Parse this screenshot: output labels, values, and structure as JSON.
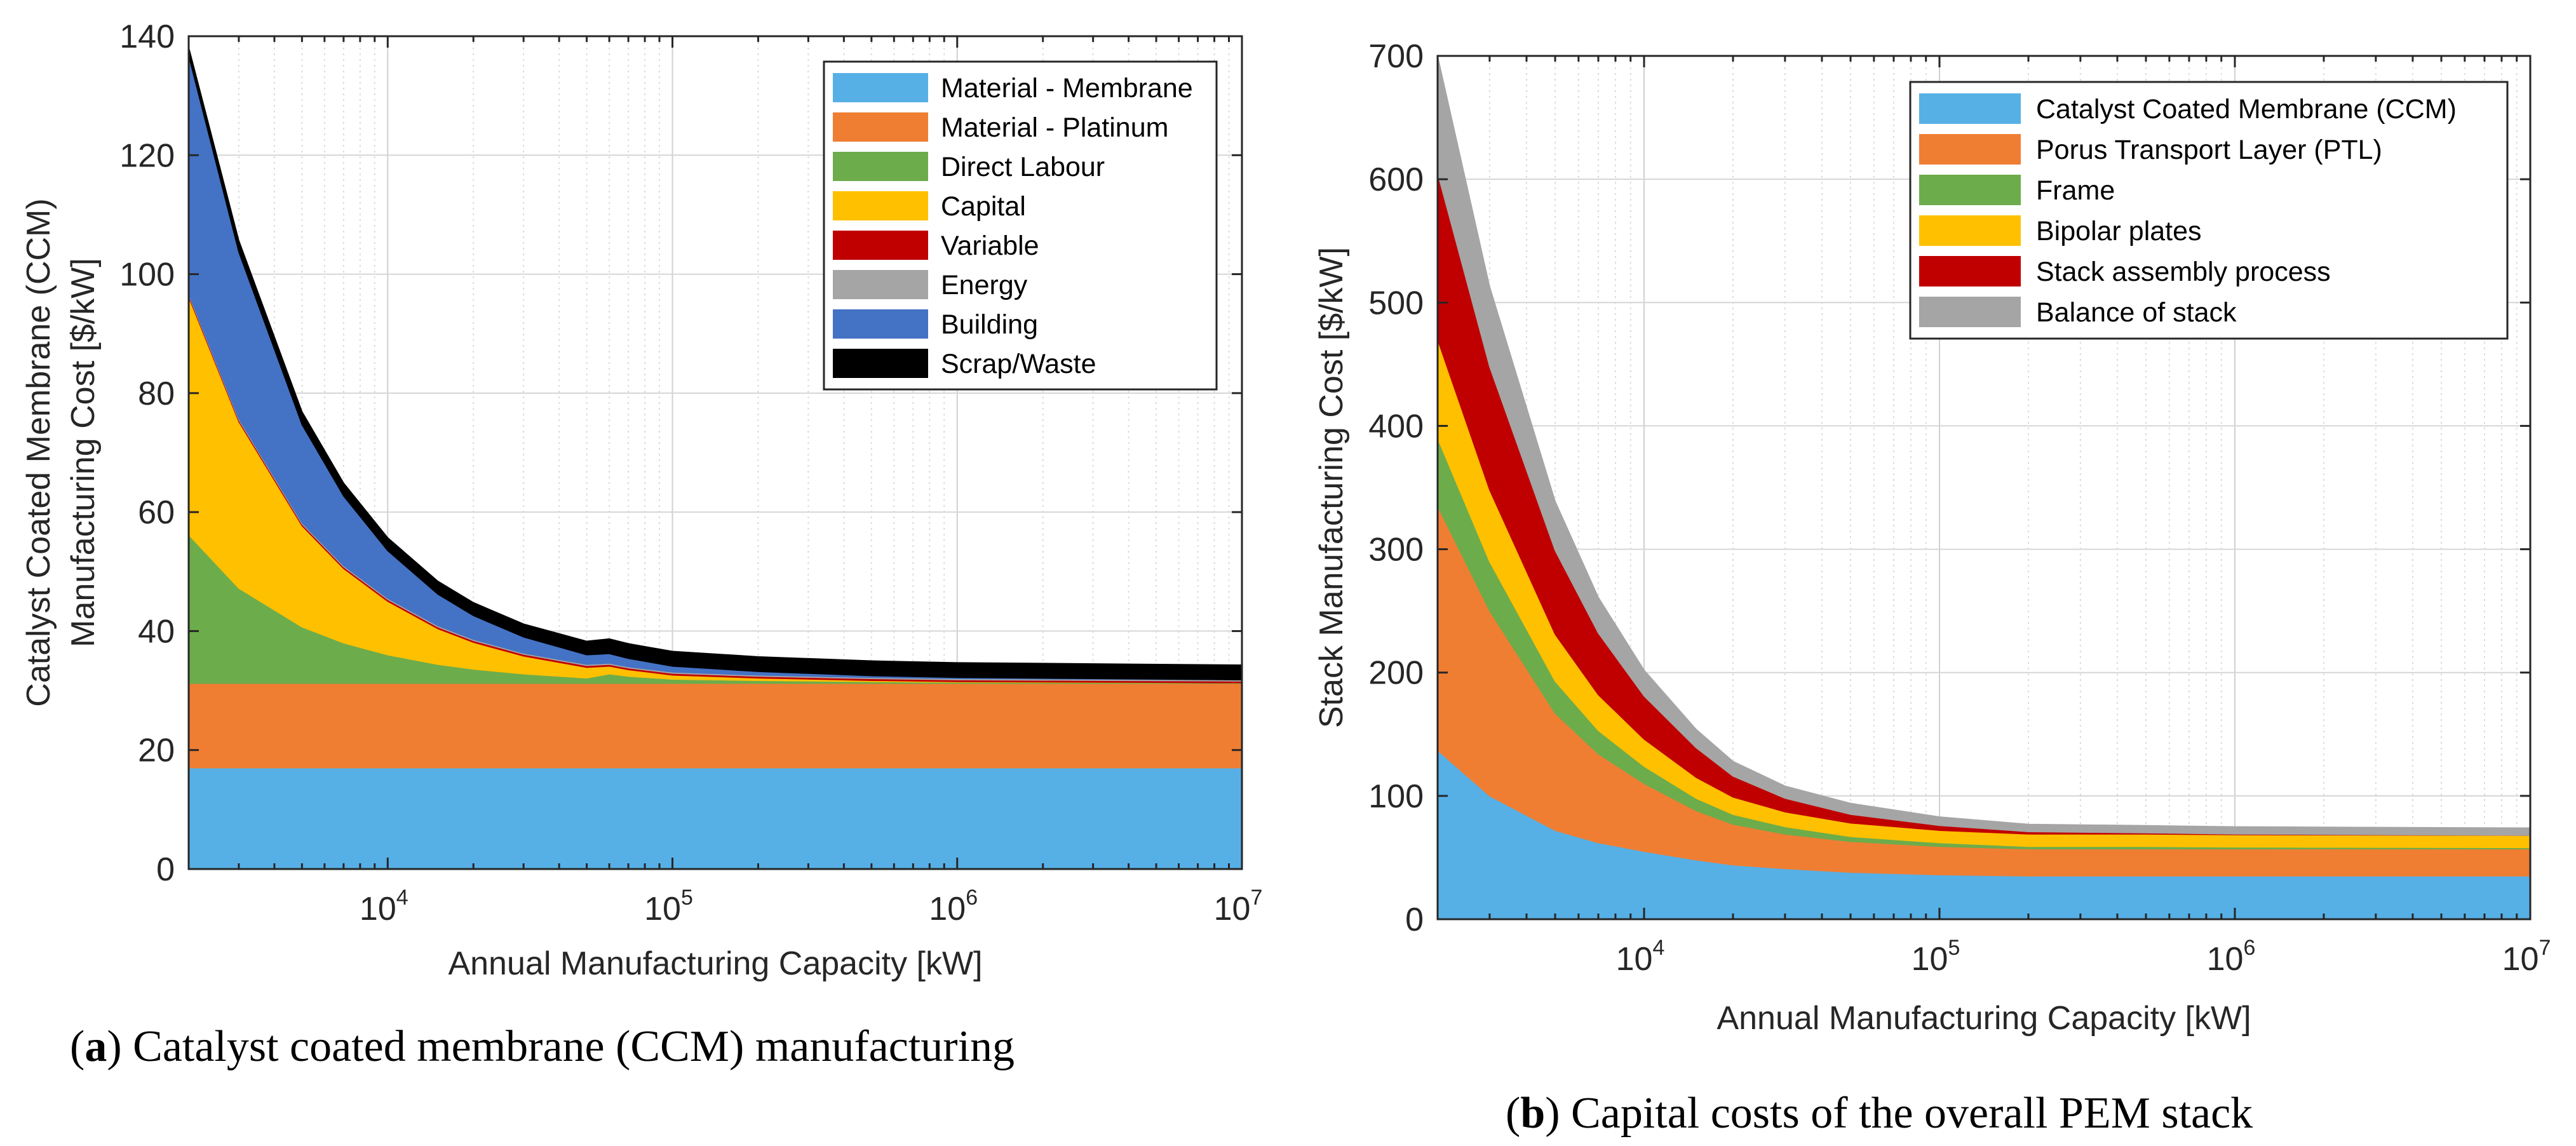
{
  "chart_data": [
    {
      "id": "a",
      "type": "area",
      "stacked": true,
      "x_scale": "log",
      "xlim": [
        2000,
        10000000
      ],
      "ylim": [
        0,
        140
      ],
      "yticks": [
        0,
        20,
        40,
        60,
        80,
        100,
        120,
        140
      ],
      "xticks": [
        10000,
        100000,
        1000000,
        10000000
      ],
      "xtick_labels": [
        {
          "base": "10",
          "exp": "4"
        },
        {
          "base": "10",
          "exp": "5"
        },
        {
          "base": "10",
          "exp": "6"
        },
        {
          "base": "10",
          "exp": "7"
        }
      ],
      "xlabel": "Annual Manufacturing Capacity [kW]",
      "ylabel_lines": [
        "Catalyst Coated Membrane (CCM)",
        "Manufacturing Cost [$/kW]"
      ],
      "caption_letter": "a",
      "caption_text": ") Catalyst coated membrane (CCM) manufacturing",
      "grid": true,
      "legend_position": "top-right",
      "x": [
        2000,
        3000,
        5000,
        7000,
        10000,
        15000,
        20000,
        30000,
        50000,
        60000,
        70000,
        100000,
        200000,
        500000,
        1000000,
        10000000
      ],
      "series": [
        {
          "name": "Material - Membrane",
          "color": "#56B0E6",
          "values": [
            17,
            17,
            17,
            17,
            17,
            17,
            17,
            17,
            17,
            17,
            17,
            17,
            17,
            17,
            17,
            17
          ]
        },
        {
          "name": "Material - Platinum",
          "color": "#EF7E33",
          "values": [
            14.2,
            14.2,
            14.2,
            14.2,
            14.2,
            14.2,
            14.2,
            14.2,
            14.2,
            14.2,
            14.2,
            14.2,
            14.2,
            14.2,
            14.2,
            14.2
          ]
        },
        {
          "name": "Direct Labour",
          "color": "#6DAC4B",
          "values": [
            25,
            16,
            9.5,
            6.8,
            4.8,
            3.2,
            2.4,
            1.6,
            0.9,
            1.6,
            1.2,
            0.7,
            0.5,
            0.3,
            0.2,
            0.1
          ]
        },
        {
          "name": "Capital",
          "color": "#FFC000",
          "values": [
            40,
            28,
            17,
            12.5,
            9,
            6,
            4.5,
            3,
            1.8,
            1.3,
            1.1,
            0.7,
            0.4,
            0.2,
            0.1,
            0
          ]
        },
        {
          "name": "Variable",
          "color": "#C00000",
          "values": [
            0.3,
            0.3,
            0.3,
            0.3,
            0.3,
            0.3,
            0.3,
            0.3,
            0.3,
            0.3,
            0.3,
            0.3,
            0.3,
            0.3,
            0.3,
            0.3
          ]
        },
        {
          "name": "Energy",
          "color": "#A5A5A5",
          "values": [
            0.2,
            0.2,
            0.2,
            0.2,
            0.2,
            0.2,
            0.2,
            0.2,
            0.2,
            0.2,
            0.2,
            0.2,
            0.2,
            0.2,
            0.2,
            0.2
          ]
        },
        {
          "name": "Building",
          "color": "#4472C4",
          "values": [
            40,
            28,
            16.5,
            11.7,
            8,
            5.3,
            4,
            2.7,
            1.6,
            1.6,
            1.4,
            1,
            0.6,
            0.3,
            0.2,
            0
          ]
        },
        {
          "name": "Scrap/Waste",
          "color": "#000000",
          "values": [
            1.5,
            2.0,
            2.2,
            2.2,
            2.2,
            2.2,
            2.2,
            2.2,
            2.3,
            2.5,
            2.5,
            2.5,
            2.5,
            2.5,
            2.5,
            2.5
          ]
        }
      ]
    },
    {
      "id": "b",
      "type": "area",
      "stacked": true,
      "x_scale": "log",
      "xlim": [
        2000,
        10000000
      ],
      "ylim": [
        0,
        700
      ],
      "yticks": [
        0,
        100,
        200,
        300,
        400,
        500,
        600,
        700
      ],
      "xticks": [
        10000,
        100000,
        1000000,
        10000000
      ],
      "xtick_labels": [
        {
          "base": "10",
          "exp": "4"
        },
        {
          "base": "10",
          "exp": "5"
        },
        {
          "base": "10",
          "exp": "6"
        },
        {
          "base": "10",
          "exp": "7"
        }
      ],
      "xlabel": "Annual Manufacturing Capacity [kW]",
      "ylabel_lines": [
        "Stack Manufacturing Cost [$/kW]"
      ],
      "caption_letter": "b",
      "caption_text": ") Capital costs of the overall PEM stack",
      "grid": true,
      "legend_position": "top-right",
      "x": [
        2000,
        3000,
        5000,
        7000,
        10000,
        15000,
        20000,
        30000,
        50000,
        100000,
        200000,
        500000,
        1000000,
        10000000
      ],
      "series": [
        {
          "name": "Catalyst Coated Membrane (CCM)",
          "color": "#56B0E6",
          "values": [
            137,
            100,
            72,
            62,
            55,
            48,
            44,
            41,
            38,
            36,
            35,
            35,
            35,
            35
          ]
        },
        {
          "name": "Porus Transport Layer (PTL)",
          "color": "#EF7E33",
          "values": [
            198,
            150,
            95,
            72,
            55,
            40,
            33,
            28,
            25,
            23,
            22,
            22,
            22,
            22
          ]
        },
        {
          "name": "Frame",
          "color": "#6DAC4B",
          "values": [
            55,
            40,
            26,
            19,
            14,
            10,
            8,
            6,
            4,
            3,
            2,
            2,
            1.5,
            1
          ]
        },
        {
          "name": "Bipolar plates",
          "color": "#FFC000",
          "values": [
            80,
            58,
            38,
            29,
            22,
            17,
            14,
            12,
            11,
            10,
            10,
            10,
            10,
            10
          ]
        },
        {
          "name": "Stack assembly process",
          "color": "#C00000",
          "values": [
            135,
            100,
            68,
            50,
            35,
            24,
            17,
            11,
            7,
            4,
            2,
            1,
            0.5,
            0
          ]
        },
        {
          "name": "Balance of stack",
          "color": "#A5A5A5",
          "values": [
            95,
            65,
            40,
            29,
            21,
            15,
            12,
            10,
            9,
            7,
            6,
            6,
            6,
            6
          ]
        }
      ]
    }
  ]
}
